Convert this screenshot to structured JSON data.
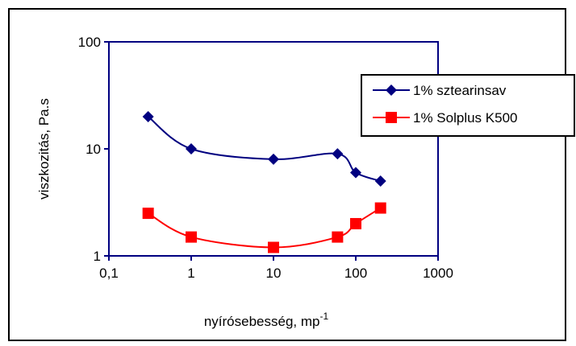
{
  "chart_data": {
    "type": "line",
    "title": "",
    "xlabel": "nyírósebesség, mp",
    "xlabel_superscript": "-1",
    "ylabel": "viszkozitás, Pa.s",
    "x_scale": "log",
    "y_scale": "log",
    "xlim": [
      0.1,
      1000
    ],
    "ylim": [
      1,
      100
    ],
    "x_ticks": [
      0.1,
      1,
      10,
      100,
      1000
    ],
    "x_tick_labels": [
      "0,1",
      "1",
      "10",
      "100",
      "1000"
    ],
    "y_ticks": [
      1,
      10,
      100
    ],
    "y_tick_labels": [
      "1",
      "10",
      "100"
    ],
    "grid": false,
    "legend_position": "right",
    "series": [
      {
        "name": "1% sztearinsav",
        "color": "#000080",
        "marker": "diamond",
        "x": [
          0.3,
          1,
          10,
          60,
          100,
          200
        ],
        "y": [
          20,
          10,
          8,
          9,
          6,
          5
        ]
      },
      {
        "name": "1% Solplus K500",
        "color": "#ff0000",
        "marker": "square",
        "x": [
          0.3,
          1,
          10,
          60,
          100,
          200
        ],
        "y": [
          2.5,
          1.5,
          1.2,
          1.5,
          2.0,
          2.8
        ]
      }
    ]
  }
}
